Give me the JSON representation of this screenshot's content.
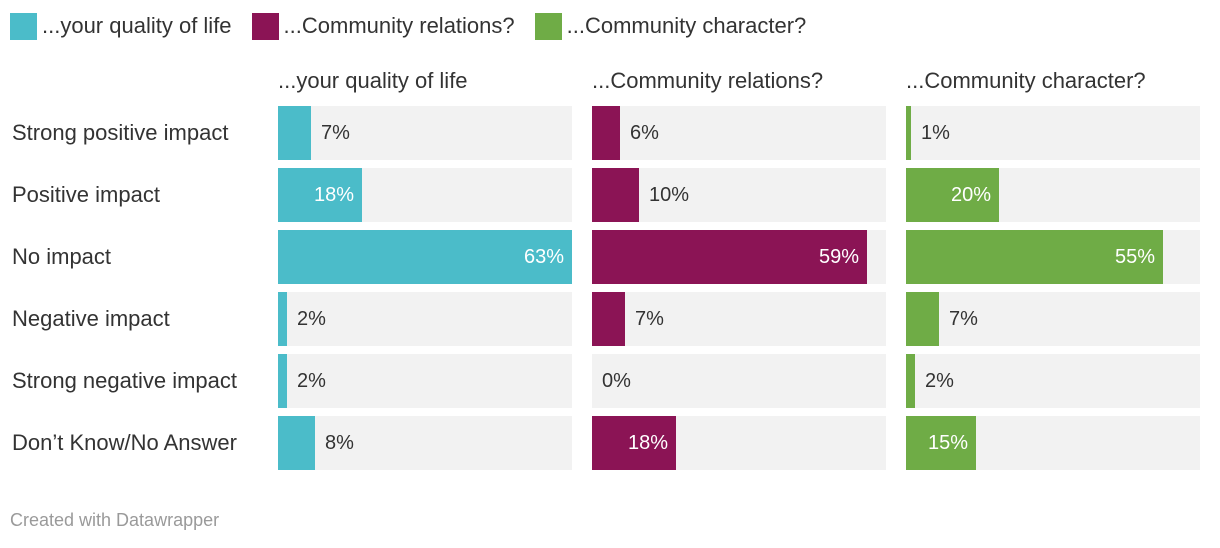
{
  "legend": [
    {
      "label": "...your quality of life",
      "color": "#4bbcc9"
    },
    {
      "label": "...Community relations?",
      "color": "#8b1455"
    },
    {
      "label": "...Community character?",
      "color": "#6fac46"
    }
  ],
  "footer": "Created with Datawrapper",
  "chart_data": {
    "type": "bar",
    "orientation": "horizontal",
    "categories": [
      "Strong positive impact",
      "Positive impact",
      "No impact",
      "Negative impact",
      "Strong negative impact",
      "Don’t Know/No Answer"
    ],
    "xlim": [
      0,
      63
    ],
    "unit": "%",
    "series": [
      {
        "name": "...your quality of life",
        "color": "#4bbcc9",
        "values": [
          7,
          18,
          63,
          2,
          2,
          8
        ]
      },
      {
        "name": "...Community relations?",
        "color": "#8b1455",
        "values": [
          6,
          10,
          59,
          7,
          0,
          18
        ]
      },
      {
        "name": "...Community character?",
        "color": "#6fac46",
        "values": [
          1,
          20,
          55,
          7,
          2,
          15
        ]
      }
    ]
  }
}
